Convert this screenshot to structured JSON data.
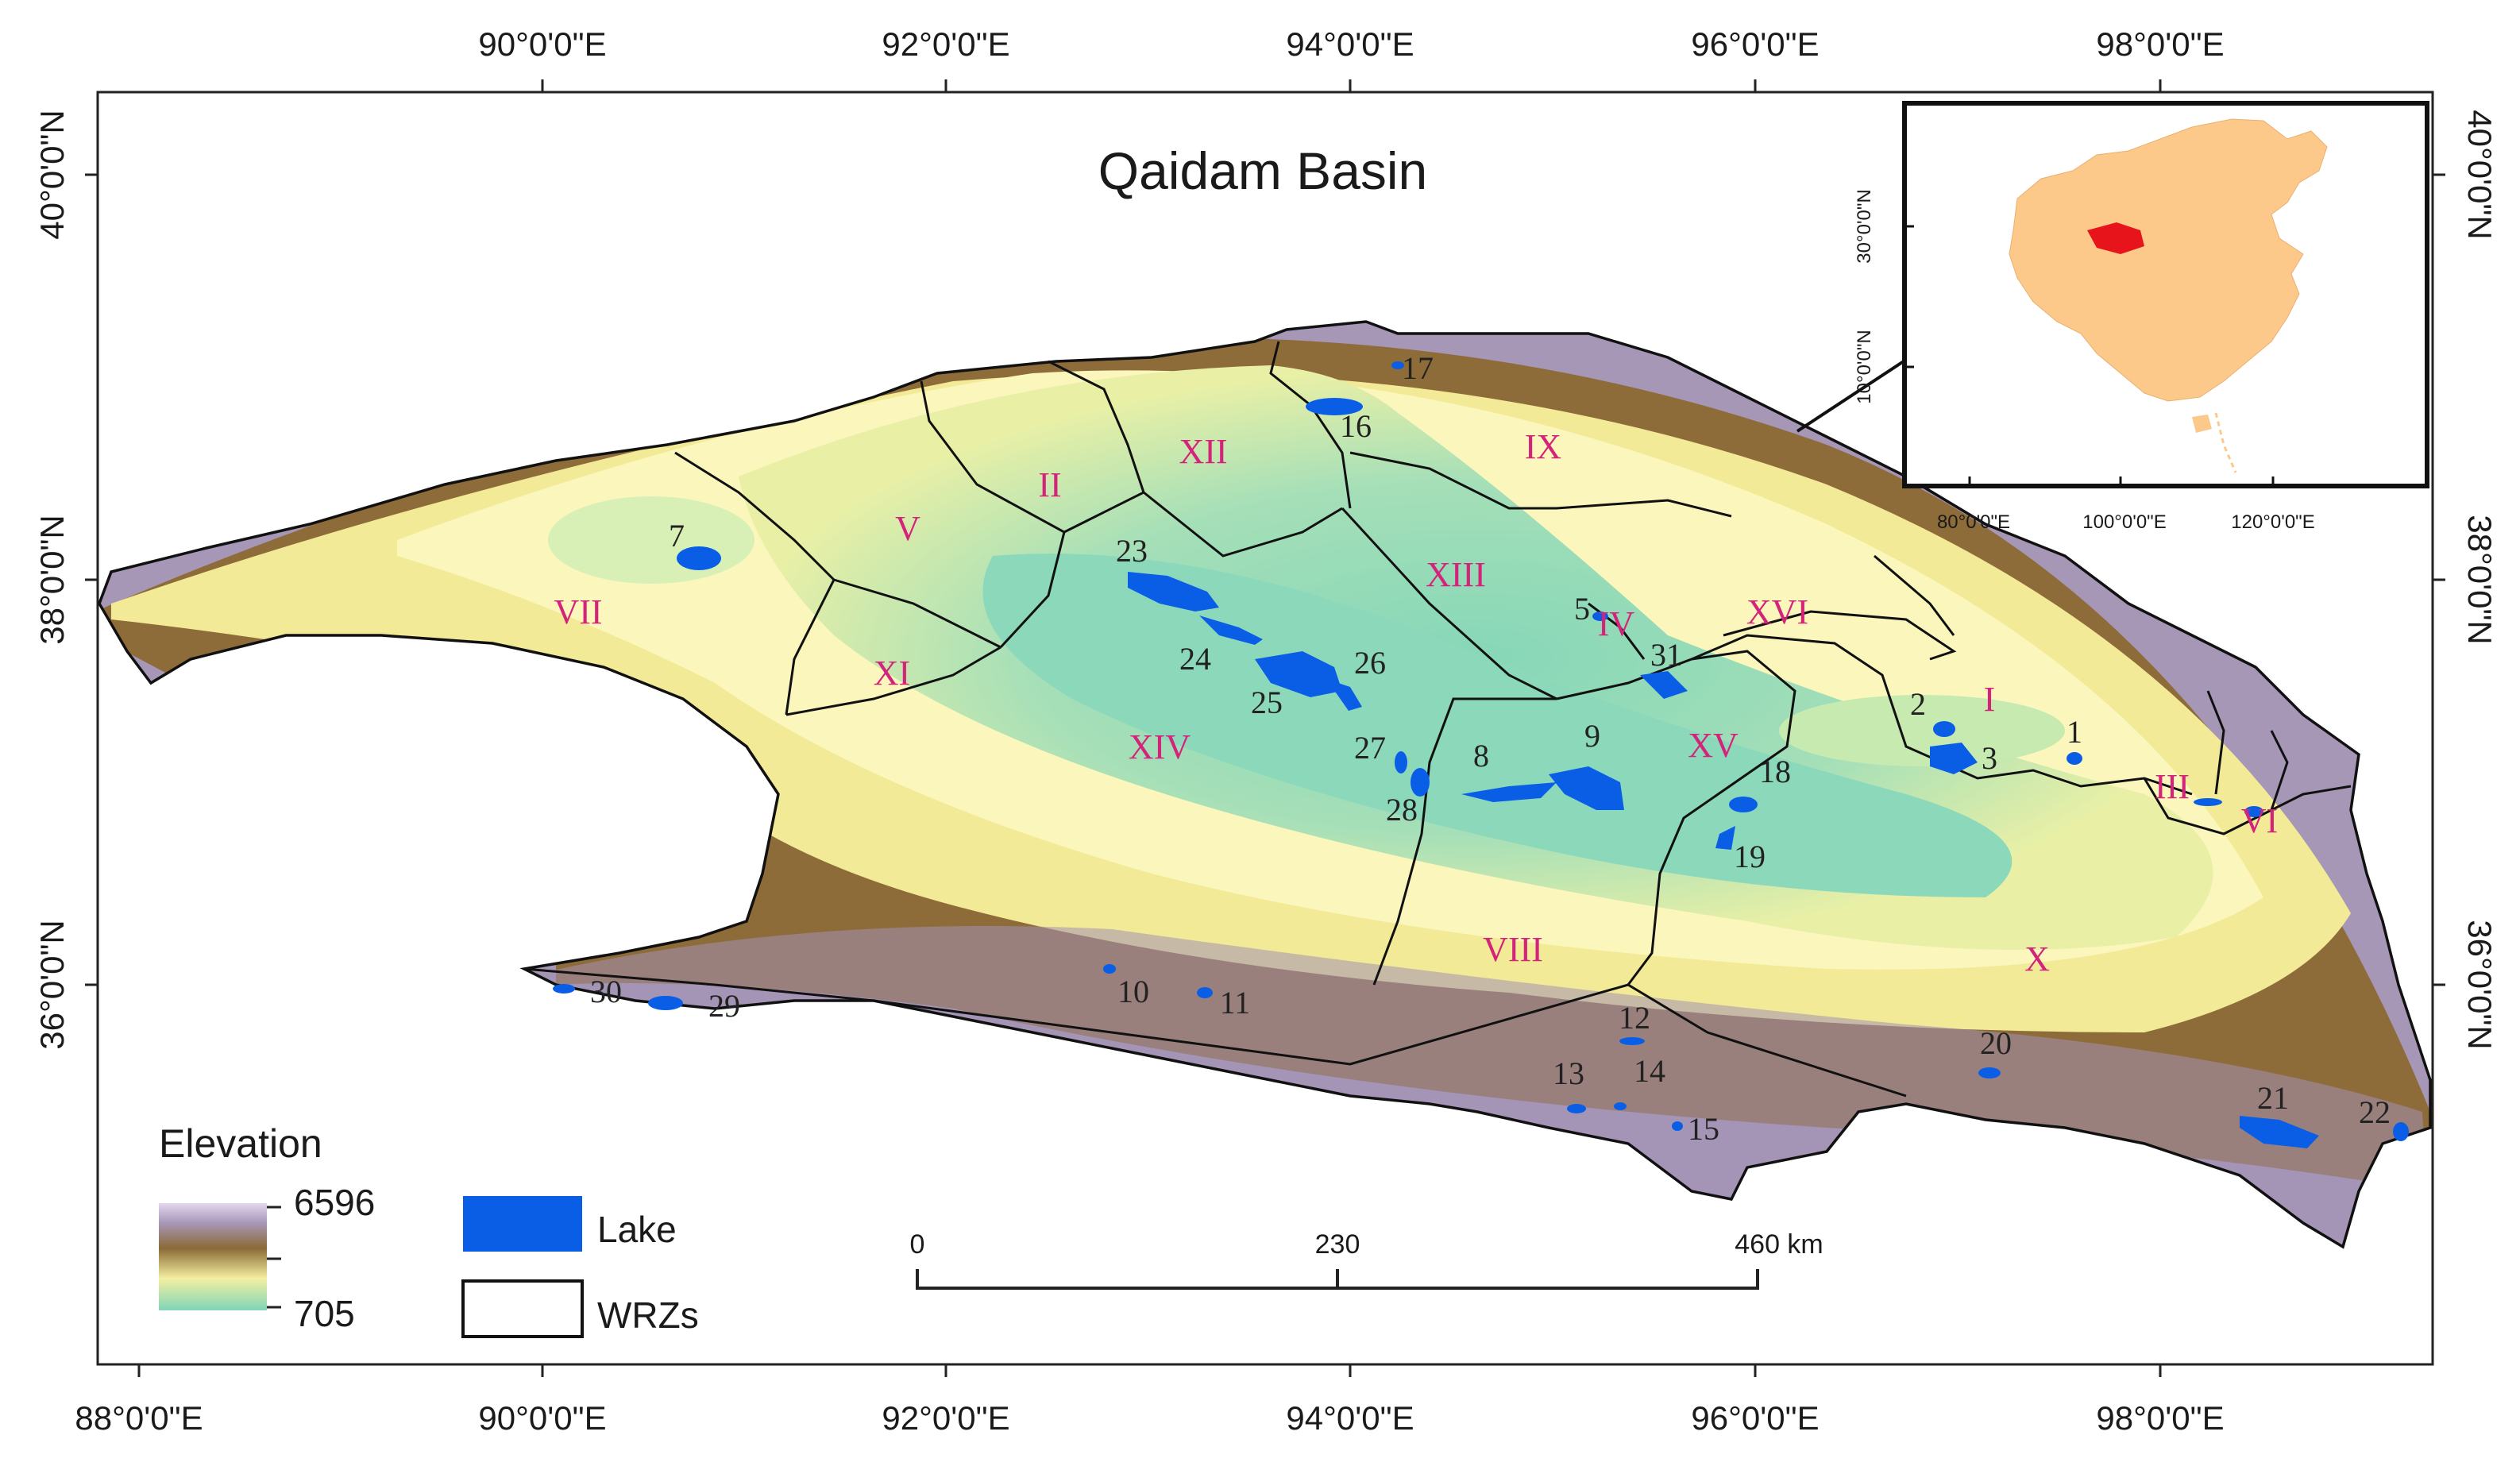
{
  "title": "Qaidam Basin",
  "graticule": {
    "lon_labels": [
      "88°0'0\"E",
      "90°0'0\"E",
      "92°0'0\"E",
      "94°0'0\"E",
      "96°0'0\"E",
      "98°0'0\"E"
    ],
    "lat_labels": [
      "40°0'0\"N",
      "38°0'0\"N",
      "36°0'0\"N"
    ]
  },
  "inset": {
    "lat_labels": [
      "30°0'0\"N",
      "10°0'0\"N"
    ],
    "lon_labels": [
      "80°0'0\"E",
      "100°0'0\"E",
      "120°0'0\"E"
    ]
  },
  "legend": {
    "elevation_title": "Elevation",
    "elevation_max": "6596",
    "elevation_min": "705",
    "lake_label": "Lake",
    "wrz_label": "WRZs",
    "colors": {
      "lake": "#0a5ee6",
      "ramp_top": "#d9cde8",
      "ramp_mid1": "#9e8fb0",
      "ramp_mid2": "#8a6a36",
      "ramp_mid3": "#f7f3a0",
      "ramp_bottom": "#7fd6b8"
    }
  },
  "scale_bar": {
    "ticks": [
      "0",
      "230",
      "460 km"
    ]
  },
  "zones": [
    {
      "id": "z-i",
      "label": "I"
    },
    {
      "id": "z-ii",
      "label": "II"
    },
    {
      "id": "z-iii",
      "label": "III"
    },
    {
      "id": "z-iv",
      "label": "IV"
    },
    {
      "id": "z-v",
      "label": "V"
    },
    {
      "id": "z-vi",
      "label": "VI"
    },
    {
      "id": "z-vii",
      "label": "VII"
    },
    {
      "id": "z-viii",
      "label": "VIII"
    },
    {
      "id": "z-ix",
      "label": "IX"
    },
    {
      "id": "z-x",
      "label": "X"
    },
    {
      "id": "z-xi",
      "label": "XI"
    },
    {
      "id": "z-xii",
      "label": "XII"
    },
    {
      "id": "z-xiii",
      "label": "XIII"
    },
    {
      "id": "z-xiv",
      "label": "XIV"
    },
    {
      "id": "z-xv",
      "label": "XV"
    },
    {
      "id": "z-xvi",
      "label": "XVI"
    }
  ],
  "lakes": [
    "1",
    "2",
    "3",
    "5",
    "7",
    "8",
    "9",
    "10",
    "11",
    "12",
    "13",
    "14",
    "15",
    "16",
    "17",
    "18",
    "19",
    "20",
    "21",
    "22",
    "23",
    "24",
    "25",
    "26",
    "27",
    "28",
    "29",
    "30",
    "31"
  ],
  "colors": {
    "frame": "#222222",
    "zone_label": "#d4237a",
    "inset_land": "#fcc98a",
    "inset_highlight": "#e8141b"
  }
}
